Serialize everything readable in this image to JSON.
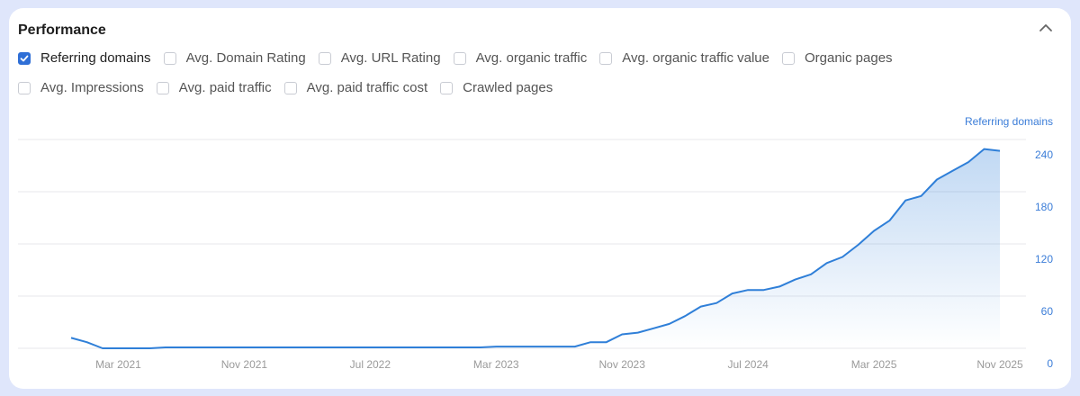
{
  "panel": {
    "title": "Performance"
  },
  "metrics_row1": [
    {
      "label": "Referring domains",
      "checked": true
    },
    {
      "label": "Avg. Domain Rating",
      "checked": false
    },
    {
      "label": "Avg. URL Rating",
      "checked": false
    },
    {
      "label": "Avg. organic traffic",
      "checked": false
    },
    {
      "label": "Avg. organic traffic value",
      "checked": false
    },
    {
      "label": "Organic pages",
      "checked": false
    }
  ],
  "metrics_row2": [
    {
      "label": "Avg. Impressions",
      "checked": false
    },
    {
      "label": "Avg. paid traffic",
      "checked": false
    },
    {
      "label": "Avg. paid traffic cost",
      "checked": false
    },
    {
      "label": "Crawled pages",
      "checked": false
    }
  ],
  "colors": {
    "line": "#2f7fd8",
    "accent": "#2f6fd6",
    "axis_text": "#3b7dd8"
  },
  "chart_data": {
    "type": "area",
    "title": "",
    "ylabel": "Referring domains",
    "ylabel_position": "right",
    "ylim": [
      0,
      240
    ],
    "yticks": [
      0,
      60,
      120,
      180,
      240
    ],
    "xticks": [
      "Mar 2021",
      "Nov 2021",
      "Jul 2022",
      "Mar 2023",
      "Nov 2023",
      "Jul 2024",
      "Mar 2025",
      "Nov 2025"
    ],
    "xtick_months": [
      "2021-03",
      "2021-11",
      "2022-07",
      "2023-03",
      "2023-11",
      "2024-07",
      "2025-03",
      "2025-11"
    ],
    "grid": true,
    "x": [
      "2020-12",
      "2021-01",
      "2021-02",
      "2021-03",
      "2021-04",
      "2021-05",
      "2021-06",
      "2021-07",
      "2021-08",
      "2021-09",
      "2021-10",
      "2021-11",
      "2021-12",
      "2022-01",
      "2022-02",
      "2022-03",
      "2022-04",
      "2022-05",
      "2022-06",
      "2022-07",
      "2022-08",
      "2022-09",
      "2022-10",
      "2022-11",
      "2022-12",
      "2023-01",
      "2023-02",
      "2023-03",
      "2023-04",
      "2023-05",
      "2023-06",
      "2023-07",
      "2023-08",
      "2023-09",
      "2023-10",
      "2023-11",
      "2023-12",
      "2024-01",
      "2024-02",
      "2024-03",
      "2024-04",
      "2024-05",
      "2024-06",
      "2024-07",
      "2024-08",
      "2024-09",
      "2024-10",
      "2024-11",
      "2024-12",
      "2025-01",
      "2025-02",
      "2025-03",
      "2025-04",
      "2025-05",
      "2025-06",
      "2025-07",
      "2025-08",
      "2025-09",
      "2025-10",
      "2025-11"
    ],
    "series": [
      {
        "name": "Referring domains",
        "values": [
          12,
          7,
          0,
          0,
          0,
          0,
          1,
          1,
          1,
          1,
          1,
          1,
          1,
          1,
          1,
          1,
          1,
          1,
          1,
          1,
          1,
          1,
          1,
          1,
          1,
          1,
          1,
          2,
          2,
          2,
          2,
          2,
          2,
          7,
          7,
          16,
          18,
          23,
          28,
          37,
          48,
          52,
          63,
          67,
          67,
          71,
          79,
          85,
          98,
          105,
          119,
          135,
          147,
          170,
          175,
          194,
          204,
          214,
          229,
          227
        ]
      }
    ]
  }
}
